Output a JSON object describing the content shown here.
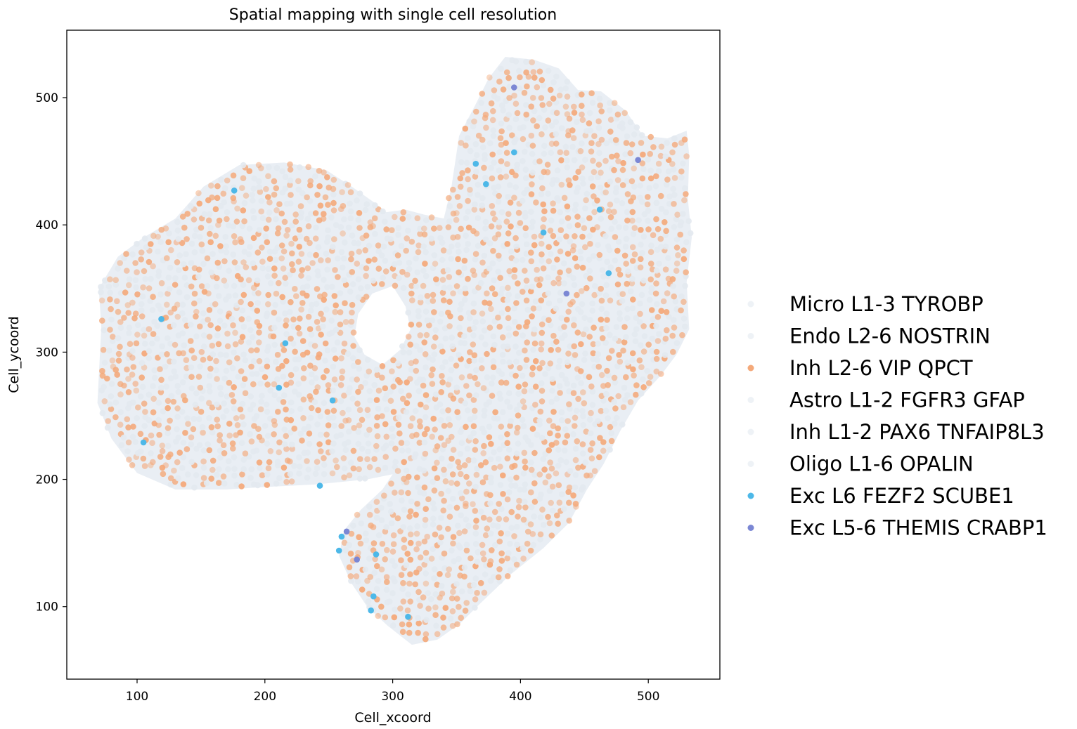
{
  "chart_data": {
    "type": "scatter",
    "title": "Spatial mapping with single cell resolution",
    "xlabel": "Cell_xcoord",
    "ylabel": "Cell_ycoord",
    "xlim": [
      45,
      556
    ],
    "ylim": [
      43,
      553
    ],
    "x_ticks": [
      100,
      200,
      300,
      400,
      500
    ],
    "y_ticks": [
      100,
      200,
      300,
      400,
      500
    ],
    "legend_position": "right",
    "series": [
      {
        "name": "Micro L1-3 TYROBP",
        "color": "#eef2f6",
        "points": []
      },
      {
        "name": "Endo L2-6 NOSTRIN",
        "color": "#eef2f6",
        "points": []
      },
      {
        "name": "Inh L2-6 VIP QPCT",
        "color": "#f4a97a",
        "points": []
      },
      {
        "name": "Astro L1-2 FGFR3 GFAP",
        "color": "#eef2f6",
        "points": []
      },
      {
        "name": "Inh L1-2 PAX6 TNFAIP8L3",
        "color": "#eef2f6",
        "points": []
      },
      {
        "name": "Oligo L1-6 OPALIN",
        "color": "#eef2f6",
        "points": []
      },
      {
        "name": "Exc L6 FEZF2 SCUBE1",
        "color": "#4db8e8",
        "points": [
          [
            119,
            326
          ],
          [
            105,
            229
          ],
          [
            176,
            427
          ],
          [
            216,
            307
          ],
          [
            211,
            272
          ],
          [
            253,
            262
          ],
          [
            243,
            195
          ],
          [
            260,
            155
          ],
          [
            258,
            144
          ],
          [
            287,
            141
          ],
          [
            285,
            108
          ],
          [
            283,
            97
          ],
          [
            312,
            92
          ],
          [
            365,
            448
          ],
          [
            373,
            432
          ],
          [
            395,
            457
          ],
          [
            418,
            394
          ],
          [
            462,
            412
          ],
          [
            469,
            362
          ]
        ]
      },
      {
        "name": "Exc L5-6 THEMIS CRABP1",
        "color": "#7b87d4",
        "points": [
          [
            395,
            508
          ],
          [
            492,
            451
          ],
          [
            436,
            346
          ],
          [
            264,
            159
          ],
          [
            272,
            137
          ]
        ]
      }
    ],
    "region_outline": [
      [
        70,
        350
      ],
      [
        72,
        320
      ],
      [
        69,
        260
      ],
      [
        80,
        232
      ],
      [
        100,
        205
      ],
      [
        130,
        192
      ],
      [
        170,
        192
      ],
      [
        200,
        194
      ],
      [
        240,
        196
      ],
      [
        280,
        200
      ],
      [
        300,
        204
      ],
      [
        292,
        192
      ],
      [
        275,
        176
      ],
      [
        262,
        160
      ],
      [
        258,
        140
      ],
      [
        268,
        118
      ],
      [
        280,
        100
      ],
      [
        296,
        85
      ],
      [
        315,
        70
      ],
      [
        335,
        74
      ],
      [
        352,
        86
      ],
      [
        368,
        102
      ],
      [
        392,
        125
      ],
      [
        418,
        146
      ],
      [
        438,
        166
      ],
      [
        452,
        192
      ],
      [
        465,
        212
      ],
      [
        478,
        238
      ],
      [
        492,
        262
      ],
      [
        510,
        282
      ],
      [
        522,
        298
      ],
      [
        532,
        318
      ],
      [
        530,
        355
      ],
      [
        534,
        390
      ],
      [
        531,
        420
      ],
      [
        532,
        455
      ],
      [
        530,
        474
      ],
      [
        515,
        468
      ],
      [
        496,
        470
      ],
      [
        482,
        490
      ],
      [
        463,
        505
      ],
      [
        445,
        506
      ],
      [
        430,
        523
      ],
      [
        410,
        530
      ],
      [
        388,
        532
      ],
      [
        375,
        515
      ],
      [
        365,
        495
      ],
      [
        352,
        470
      ],
      [
        346,
        430
      ],
      [
        340,
        405
      ],
      [
        325,
        408
      ],
      [
        310,
        412
      ],
      [
        295,
        410
      ],
      [
        285,
        418
      ],
      [
        268,
        430
      ],
      [
        248,
        443
      ],
      [
        215,
        449
      ],
      [
        180,
        447
      ],
      [
        152,
        430
      ],
      [
        130,
        405
      ],
      [
        105,
        390
      ],
      [
        85,
        375
      ]
    ],
    "inner_hole": [
      [
        300,
        352
      ],
      [
        310,
        336
      ],
      [
        314,
        318
      ],
      [
        306,
        302
      ],
      [
        292,
        290
      ],
      [
        278,
        298
      ],
      [
        270,
        312
      ],
      [
        273,
        330
      ],
      [
        284,
        346
      ]
    ]
  }
}
